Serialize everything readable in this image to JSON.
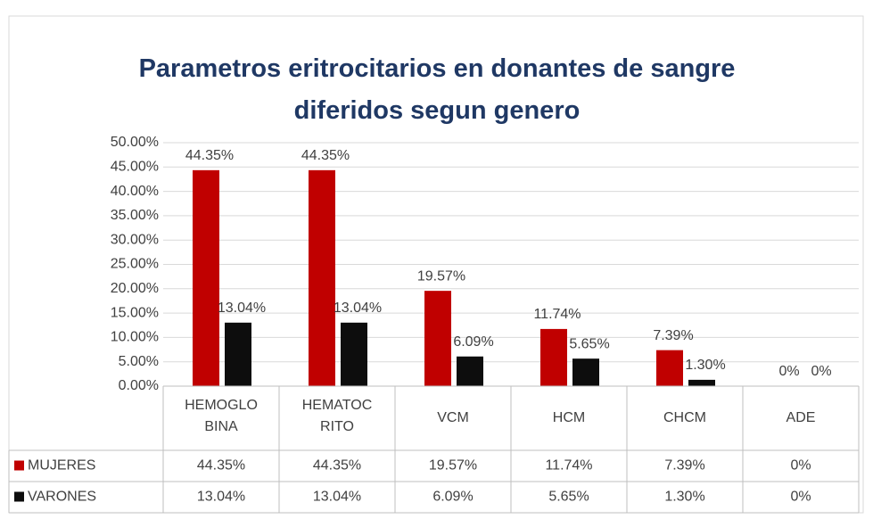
{
  "chart_data": {
    "type": "bar",
    "title": "Parametros eritrocitarios en donantes de sangre\ndiferidos segun genero",
    "categories": [
      "HEMOGLO\nBINA",
      "HEMATOC\nRITO",
      "VCM",
      "HCM",
      "CHCM",
      "ADE"
    ],
    "series": [
      {
        "name": "MUJERES",
        "color": "#c00000",
        "values": [
          44.35,
          44.35,
          19.57,
          11.74,
          7.39,
          0
        ],
        "value_labels": [
          "44.35%",
          "44.35%",
          "19.57%",
          "11.74%",
          "7.39%",
          "0%"
        ]
      },
      {
        "name": "VARONES",
        "color": "#0d0d0d",
        "values": [
          13.04,
          13.04,
          6.09,
          5.65,
          1.3,
          0
        ],
        "value_labels": [
          "13.04%",
          "13.04%",
          "6.09%",
          "5.65%",
          "1.30%",
          "0%"
        ]
      }
    ],
    "ylim": [
      0,
      50
    ],
    "yticks": [
      {
        "value": 0,
        "label": "0.00%"
      },
      {
        "value": 5,
        "label": "5.00%"
      },
      {
        "value": 10,
        "label": "10.00%"
      },
      {
        "value": 15,
        "label": "15.00%"
      },
      {
        "value": 20,
        "label": "20.00%"
      },
      {
        "value": 25,
        "label": "25.00%"
      },
      {
        "value": 30,
        "label": "30.00%"
      },
      {
        "value": 35,
        "label": "35.00%"
      },
      {
        "value": 40,
        "label": "40.00%"
      },
      {
        "value": 45,
        "label": "45.00%"
      },
      {
        "value": 50,
        "label": "50.00%"
      }
    ],
    "grid": true,
    "legend": "table"
  }
}
